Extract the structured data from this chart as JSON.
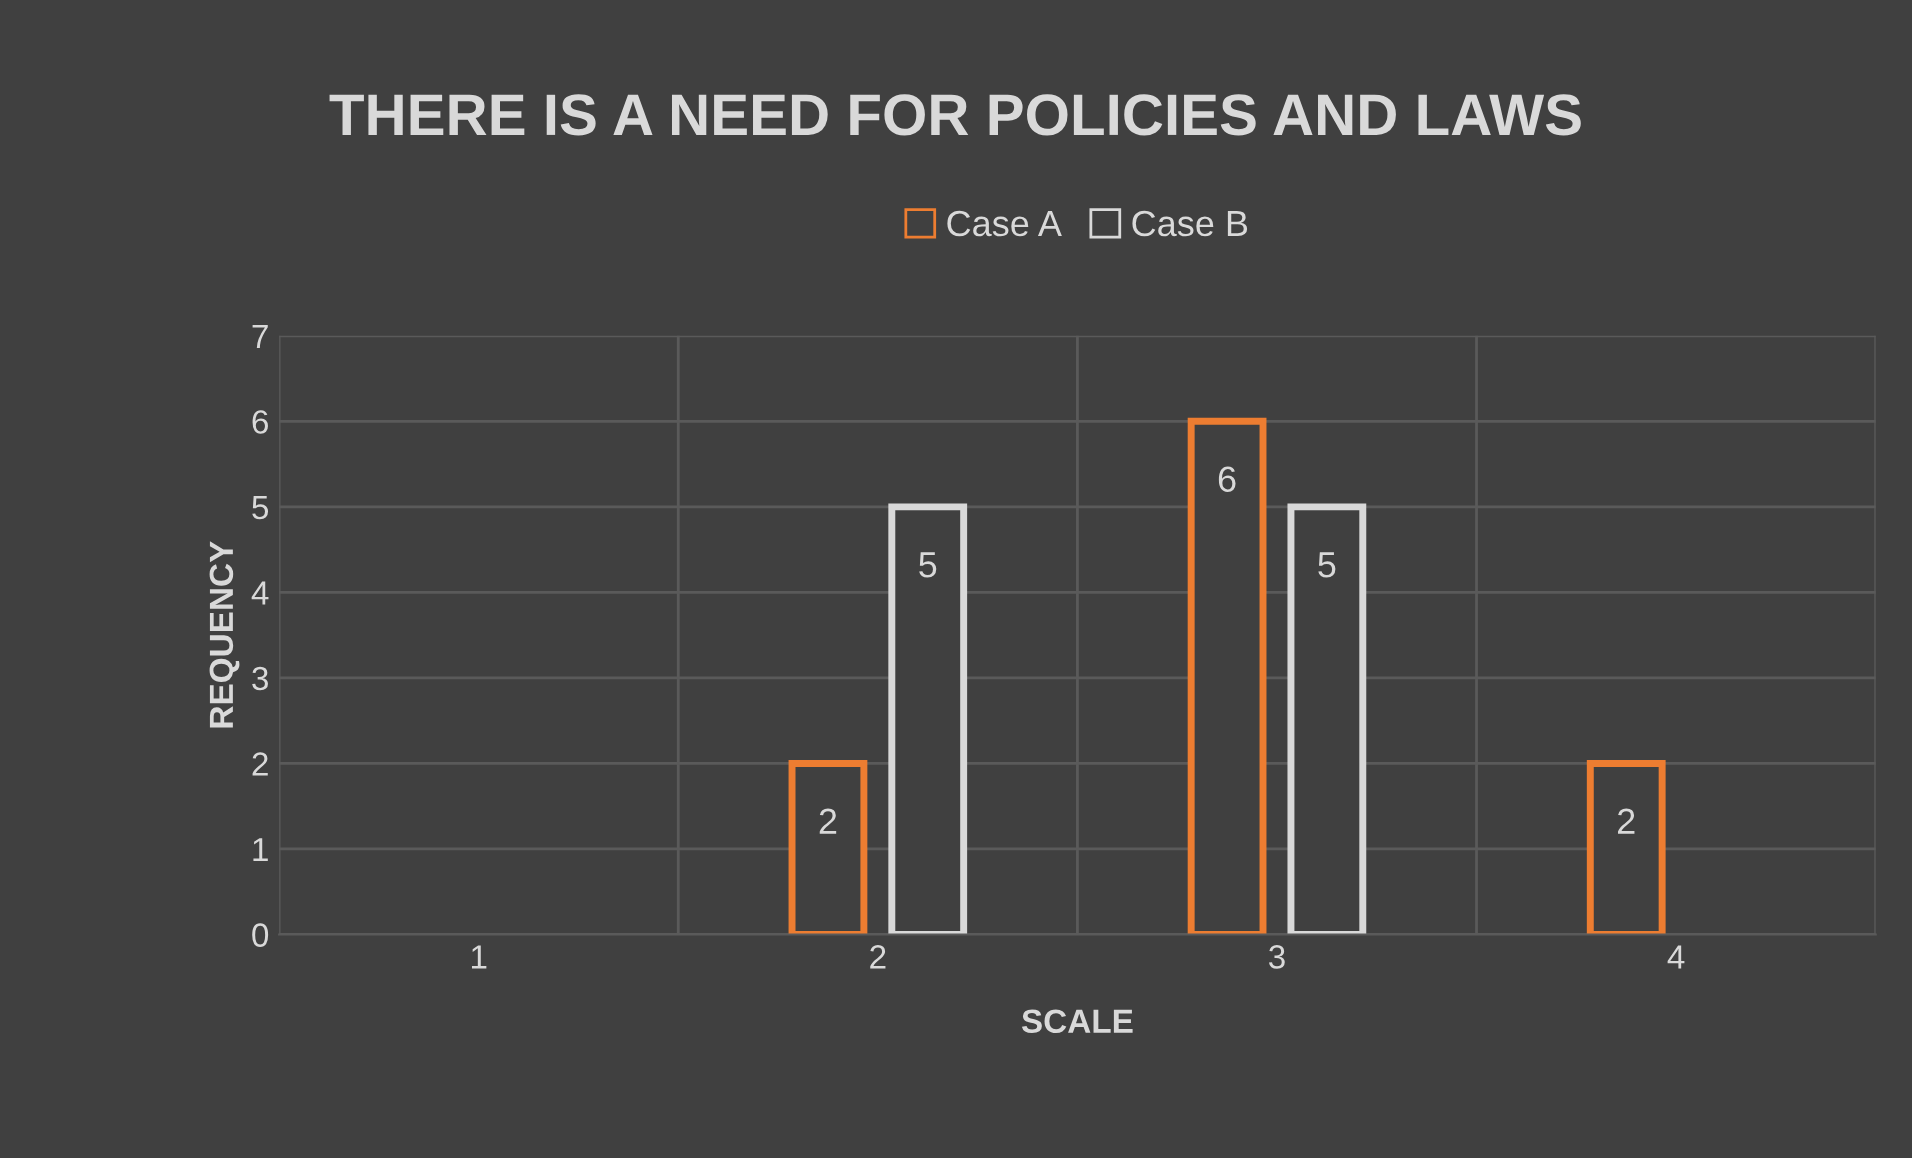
{
  "chart_data": {
    "type": "bar",
    "title": "THERE IS A NEED FOR POLICIES AND LAWS",
    "xlabel": "SCALE",
    "ylabel": "REQUENCY",
    "categories": [
      "1",
      "2",
      "3",
      "4"
    ],
    "series": [
      {
        "name": "Case A",
        "color": "#ed7d31",
        "values": [
          null,
          2,
          6,
          2
        ]
      },
      {
        "name": "Case B",
        "color": "#d9d9d9",
        "values": [
          null,
          5,
          5,
          null
        ]
      }
    ],
    "ylim": [
      0,
      7
    ],
    "yticks": [
      0,
      1,
      2,
      3,
      4,
      5,
      6,
      7
    ],
    "grid": true,
    "legend": "top",
    "data_labels": true
  }
}
